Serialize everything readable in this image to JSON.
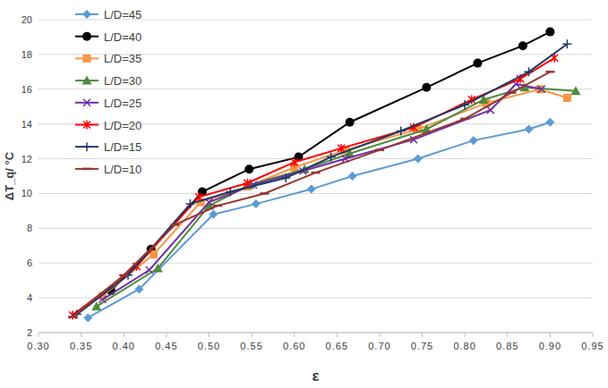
{
  "chart_data": {
    "type": "line",
    "x_label": "ε",
    "y_label": "ΔT_q/ °C",
    "xlim": [
      0.3,
      0.95
    ],
    "xticks": [
      {
        "value": 0.3,
        "label": "0.30"
      },
      0.35,
      {
        "value": 0.4,
        "label": "0.40"
      },
      0.45,
      {
        "value": 0.5,
        "label": "0.50"
      },
      0.55,
      {
        "value": 0.6,
        "label": "0.60"
      },
      0.65,
      {
        "value": 0.7,
        "label": "0.70"
      },
      0.75,
      {
        "value": 0.8,
        "label": "0.80"
      },
      0.85,
      {
        "value": 0.9,
        "label": "0.90"
      },
      0.95
    ],
    "ylim": [
      2,
      20
    ],
    "yticks": [
      2,
      4,
      6,
      8,
      10,
      12,
      14,
      16,
      18,
      20
    ],
    "grid": true,
    "legend": "top-left",
    "series": [
      {
        "name": "L/D=45",
        "color": "#5b9bd5",
        "marker": "diamond",
        "x": [
          0.358,
          0.418,
          0.505,
          0.555,
          0.62,
          0.668,
          0.745,
          0.81,
          0.875,
          0.9
        ],
        "values": [
          2.85,
          4.5,
          8.8,
          9.4,
          10.25,
          11.0,
          12.0,
          13.05,
          13.7,
          14.1
        ]
      },
      {
        "name": "L/D=40",
        "color": "#000000",
        "marker": "circle",
        "x": [
          0.385,
          0.432,
          0.492,
          0.547,
          0.605,
          0.665,
          0.755,
          0.815,
          0.868,
          0.9
        ],
        "values": [
          4.4,
          6.8,
          10.1,
          11.4,
          12.1,
          14.1,
          16.1,
          17.5,
          18.5,
          19.3
        ]
      },
      {
        "name": "L/D=35",
        "color": "#f79646",
        "marker": "square",
        "x": [
          0.375,
          0.435,
          0.49,
          0.545,
          0.6,
          0.66,
          0.745,
          0.825,
          0.888,
          0.92
        ],
        "values": [
          4.1,
          6.5,
          9.5,
          10.4,
          11.5,
          12.5,
          13.7,
          15.2,
          16.0,
          15.5
        ]
      },
      {
        "name": "L/D=30",
        "color": "#4f8a3c",
        "marker": "triangle",
        "x": [
          0.368,
          0.44,
          0.5,
          0.548,
          0.612,
          0.665,
          0.755,
          0.822,
          0.87,
          0.93
        ],
        "values": [
          3.5,
          5.7,
          9.3,
          10.5,
          11.4,
          12.3,
          13.7,
          15.4,
          16.1,
          15.9
        ]
      },
      {
        "name": "L/D=25",
        "color": "#7030a0",
        "marker": "x",
        "x": [
          0.375,
          0.43,
          0.5,
          0.552,
          0.61,
          0.66,
          0.74,
          0.83,
          0.86,
          0.89
        ],
        "values": [
          3.9,
          5.6,
          9.5,
          10.5,
          11.3,
          12.0,
          13.1,
          14.8,
          16.3,
          16.0
        ]
      },
      {
        "name": "L/D=20",
        "color": "#ff0000",
        "marker": "asterisk",
        "x": [
          0.34,
          0.415,
          0.488,
          0.545,
          0.6,
          0.655,
          0.74,
          0.808,
          0.865,
          0.905
        ],
        "values": [
          3.0,
          5.8,
          9.8,
          10.6,
          11.8,
          12.6,
          13.8,
          15.4,
          16.6,
          17.8
        ]
      },
      {
        "name": "L/D=15",
        "color": "#1f3864",
        "marker": "plus",
        "x": [
          0.345,
          0.405,
          0.478,
          0.525,
          0.59,
          0.643,
          0.725,
          0.8,
          0.875,
          0.92
        ],
        "values": [
          3.05,
          5.3,
          9.4,
          10.1,
          10.9,
          12.1,
          13.6,
          15.1,
          17.0,
          18.6
        ]
      },
      {
        "name": "L/D=10",
        "color": "#953735",
        "marker": "dash",
        "x": [
          0.34,
          0.4,
          0.46,
          0.51,
          0.565,
          0.625,
          0.7,
          0.8,
          0.855,
          0.9
        ],
        "values": [
          2.9,
          5.3,
          8.2,
          9.3,
          10.0,
          11.2,
          12.5,
          14.3,
          15.8,
          17.0
        ]
      }
    ]
  }
}
